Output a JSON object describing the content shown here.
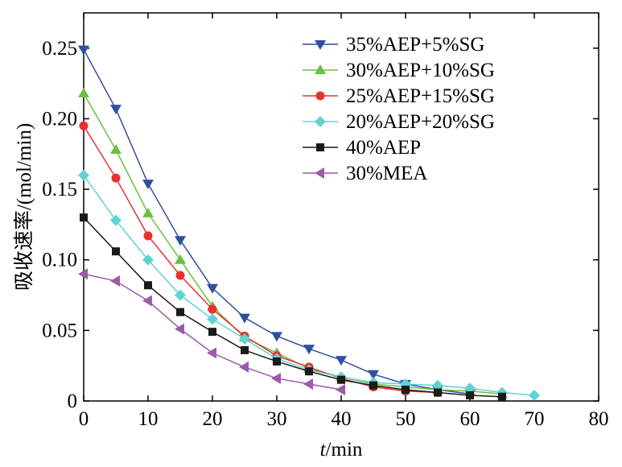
{
  "chart_data": {
    "type": "line",
    "title": "",
    "xlabel_italic": "t",
    "xlabel_rest": "/min",
    "ylabel": "吸收速率/(mol/min)",
    "xlim": [
      0,
      80
    ],
    "ylim": [
      0,
      0.275
    ],
    "xticks": [
      "0",
      "10",
      "20",
      "30",
      "40",
      "50",
      "60",
      "70",
      "80"
    ],
    "yticks": [
      "0",
      "0.05",
      "0.10",
      "0.15",
      "0.20",
      "0.25"
    ],
    "grid": false,
    "legend_position": "top-right",
    "series": [
      {
        "name": "35%AEP+5%SG",
        "color": "#2f4fa0",
        "marker": "triangle-down",
        "x": [
          0,
          5,
          10,
          15,
          20,
          25,
          30,
          35,
          40,
          45,
          50,
          55,
          60
        ],
        "y": [
          0.249,
          0.207,
          0.154,
          0.114,
          0.08,
          0.059,
          0.046,
          0.037,
          0.029,
          0.019,
          0.012,
          0.008,
          0.005
        ]
      },
      {
        "name": "30%AEP+10%SG",
        "color": "#6abf44",
        "marker": "triangle-up",
        "x": [
          0,
          5,
          10,
          15,
          20,
          25,
          30,
          35,
          40,
          45,
          50,
          55,
          60,
          65
        ],
        "y": [
          0.218,
          0.178,
          0.133,
          0.1,
          0.067,
          0.045,
          0.034,
          0.023,
          0.017,
          0.012,
          0.01,
          0.008,
          0.007,
          0.005
        ]
      },
      {
        "name": "25%AEP+15%SG",
        "color": "#e8302e",
        "marker": "circle",
        "x": [
          0,
          5,
          10,
          15,
          20,
          25,
          30,
          35,
          40,
          45,
          50,
          55
        ],
        "y": [
          0.195,
          0.158,
          0.117,
          0.089,
          0.065,
          0.046,
          0.032,
          0.024,
          0.016,
          0.01,
          0.007,
          0.006
        ]
      },
      {
        "name": "20%AEP+20%SG",
        "color": "#5dd3d3",
        "marker": "diamond",
        "x": [
          0,
          5,
          10,
          15,
          20,
          25,
          30,
          35,
          40,
          45,
          50,
          55,
          60,
          65,
          70
        ],
        "y": [
          0.16,
          0.128,
          0.1,
          0.075,
          0.058,
          0.044,
          0.03,
          0.022,
          0.017,
          0.013,
          0.012,
          0.011,
          0.009,
          0.006,
          0.004
        ]
      },
      {
        "name": "40%AEP",
        "color": "#1a1a1a",
        "marker": "square",
        "x": [
          0,
          5,
          10,
          15,
          20,
          25,
          30,
          35,
          40,
          45,
          50,
          55,
          60,
          65
        ],
        "y": [
          0.13,
          0.106,
          0.082,
          0.063,
          0.049,
          0.036,
          0.028,
          0.021,
          0.015,
          0.011,
          0.008,
          0.006,
          0.004,
          0.003
        ]
      },
      {
        "name": "30%MEA",
        "color": "#9b5ba8",
        "marker": "triangle-left",
        "x": [
          0,
          5,
          10,
          15,
          20,
          25,
          30,
          35,
          40
        ],
        "y": [
          0.09,
          0.085,
          0.071,
          0.051,
          0.034,
          0.024,
          0.016,
          0.012,
          0.008
        ]
      }
    ]
  }
}
